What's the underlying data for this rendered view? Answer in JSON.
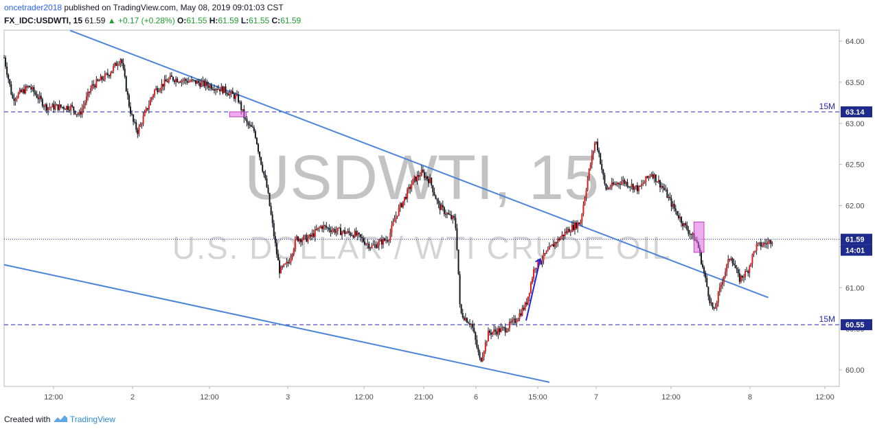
{
  "header": {
    "author": "oncetrader2018",
    "published": "published on TradingView.com, May 08, 2019 09:01:03 CST",
    "symbol": "FX_IDC:USDWTI, 15",
    "last": "61.59",
    "change": "+0.17 (+0.28%)",
    "o_label": "O:",
    "o_value": "61.55",
    "h_label": "H:",
    "h_value": "61.59",
    "l_label": "L:",
    "l_value": "61.55",
    "c_label": "C:",
    "c_value": "61.59"
  },
  "footer": {
    "created": "Created with",
    "brand": "TradingView"
  },
  "watermark": {
    "line1": "USDWTI, 15",
    "line2": "U.S. DOLLAR / WTI CRUDE OIL"
  },
  "colors": {
    "up": "#e01a1a",
    "down": "#131722",
    "trend": "#4a84db",
    "level": "#2424b8",
    "badge": "#1e2a8c",
    "box": "#e066e0"
  },
  "chart_data": {
    "type": "candlestick",
    "ylim": [
      59.8,
      64.1
    ],
    "y_ticks": [
      "60.00",
      "60.50",
      "61.00",
      "61.50",
      "62.00",
      "62.50",
      "63.00",
      "63.50",
      "64.00"
    ],
    "x_ticks": [
      "12:00",
      "2",
      "12:00",
      "3",
      "12:00",
      "21:00",
      "6",
      "15:00",
      "7",
      "12:00",
      "8",
      "12:00"
    ],
    "price_badges": [
      {
        "value": 63.14,
        "label": "63.14"
      },
      {
        "value": 61.59,
        "label": "61.59",
        "sublabel": "14:01"
      },
      {
        "value": 60.55,
        "label": "60.55"
      }
    ],
    "horizontal_levels": [
      {
        "value": 63.14,
        "label": "15M"
      },
      {
        "value": 60.55,
        "label": "15M"
      }
    ],
    "current_price": 61.59,
    "trendlines": [
      {
        "from": {
          "t": 0.079,
          "v": 64.13
        },
        "to": {
          "t": 0.915,
          "v": 60.88
        }
      },
      {
        "from": {
          "t": 0.0,
          "v": 61.28
        },
        "to": {
          "t": 0.653,
          "v": 59.85
        }
      }
    ],
    "price_path": [
      [
        0.0,
        63.8
      ],
      [
        0.01,
        63.3
      ],
      [
        0.03,
        63.45
      ],
      [
        0.05,
        63.2
      ],
      [
        0.08,
        63.2
      ],
      [
        0.09,
        63.1
      ],
      [
        0.105,
        63.45
      ],
      [
        0.125,
        63.6
      ],
      [
        0.14,
        63.8
      ],
      [
        0.15,
        63.2
      ],
      [
        0.155,
        63.0
      ],
      [
        0.16,
        62.9
      ],
      [
        0.18,
        63.4
      ],
      [
        0.2,
        63.55
      ],
      [
        0.23,
        63.5
      ],
      [
        0.25,
        63.45
      ],
      [
        0.265,
        63.4
      ],
      [
        0.28,
        63.3
      ],
      [
        0.29,
        63.0
      ],
      [
        0.3,
        62.9
      ],
      [
        0.305,
        62.65
      ],
      [
        0.315,
        62.2
      ],
      [
        0.325,
        61.5
      ],
      [
        0.33,
        61.2
      ],
      [
        0.34,
        61.3
      ],
      [
        0.35,
        61.6
      ],
      [
        0.365,
        61.6
      ],
      [
        0.38,
        61.75
      ],
      [
        0.395,
        61.7
      ],
      [
        0.42,
        61.65
      ],
      [
        0.44,
        61.5
      ],
      [
        0.46,
        61.6
      ],
      [
        0.47,
        61.9
      ],
      [
        0.48,
        62.1
      ],
      [
        0.49,
        62.3
      ],
      [
        0.5,
        62.4
      ],
      [
        0.51,
        62.3
      ],
      [
        0.52,
        62.0
      ],
      [
        0.535,
        61.85
      ],
      [
        0.54,
        61.82
      ],
      [
        0.543,
        61.4
      ],
      [
        0.546,
        60.7
      ],
      [
        0.56,
        60.55
      ],
      [
        0.57,
        60.1
      ],
      [
        0.58,
        60.45
      ],
      [
        0.6,
        60.5
      ],
      [
        0.612,
        60.6
      ],
      [
        0.625,
        60.8
      ],
      [
        0.635,
        61.25
      ],
      [
        0.648,
        61.4
      ],
      [
        0.66,
        61.55
      ],
      [
        0.675,
        61.7
      ],
      [
        0.69,
        61.8
      ],
      [
        0.7,
        62.4
      ],
      [
        0.708,
        62.8
      ],
      [
        0.712,
        62.65
      ],
      [
        0.72,
        62.2
      ],
      [
        0.74,
        62.3
      ],
      [
        0.76,
        62.2
      ],
      [
        0.775,
        62.4
      ],
      [
        0.79,
        62.2
      ],
      [
        0.8,
        62.0
      ],
      [
        0.815,
        61.75
      ],
      [
        0.83,
        61.55
      ],
      [
        0.845,
        60.85
      ],
      [
        0.85,
        60.7
      ],
      [
        0.86,
        61.1
      ],
      [
        0.87,
        61.4
      ],
      [
        0.88,
        61.1
      ],
      [
        0.89,
        61.2
      ],
      [
        0.9,
        61.5
      ],
      [
        0.915,
        61.55
      ],
      [
        0.92,
        61.59
      ]
    ],
    "highlight_boxes": [
      {
        "t0": 0.27,
        "t1": 0.29,
        "v0": 63.08,
        "v1": 63.14
      },
      {
        "t0": 0.826,
        "t1": 0.838,
        "v0": 61.43,
        "v1": 61.8
      }
    ],
    "arrow": {
      "from": {
        "t": 0.625,
        "v": 60.6
      },
      "to": {
        "t": 0.642,
        "v": 61.35
      }
    }
  }
}
